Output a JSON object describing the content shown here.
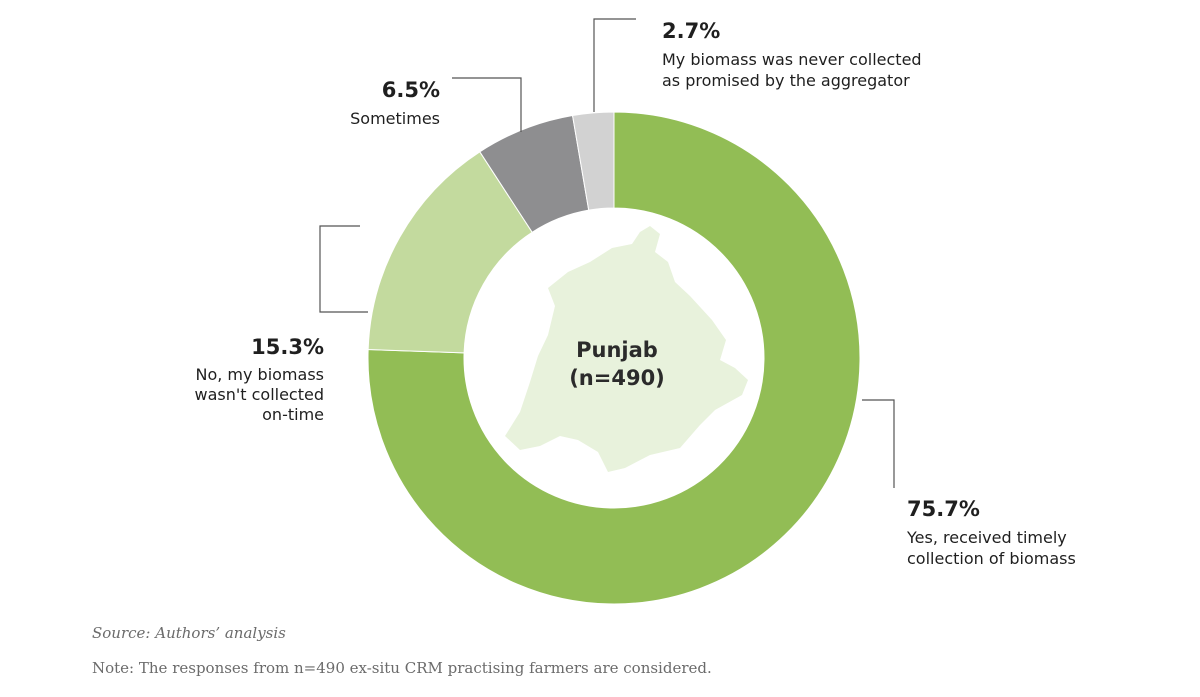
{
  "chart_data": {
    "type": "pie",
    "donut": true,
    "center_label": [
      "Punjab",
      "(n=490)"
    ],
    "slices": [
      {
        "value": 75.7,
        "label": "75.7%",
        "description": [
          "Yes, received timely",
          "collection of biomass"
        ],
        "color": "#92bd55"
      },
      {
        "value": 15.3,
        "label": "15.3%",
        "description": [
          "No, my biomass",
          "wasn't collected",
          "on-time"
        ],
        "color": "#c3da9e"
      },
      {
        "value": 6.5,
        "label": "6.5%",
        "description": [
          "Sometimes"
        ],
        "color": "#8e8e90"
      },
      {
        "value": 2.7,
        "label": "2.7%",
        "description": [
          "My biomass was never collected",
          "as promised by the aggregator"
        ],
        "color": "#d2d2d2"
      }
    ],
    "map_color": "#e8f2dc"
  },
  "footer": {
    "source": "Source: Authors’ analysis",
    "note": "Note: The responses from n=490 ex-situ CRM practising farmers are considered."
  }
}
